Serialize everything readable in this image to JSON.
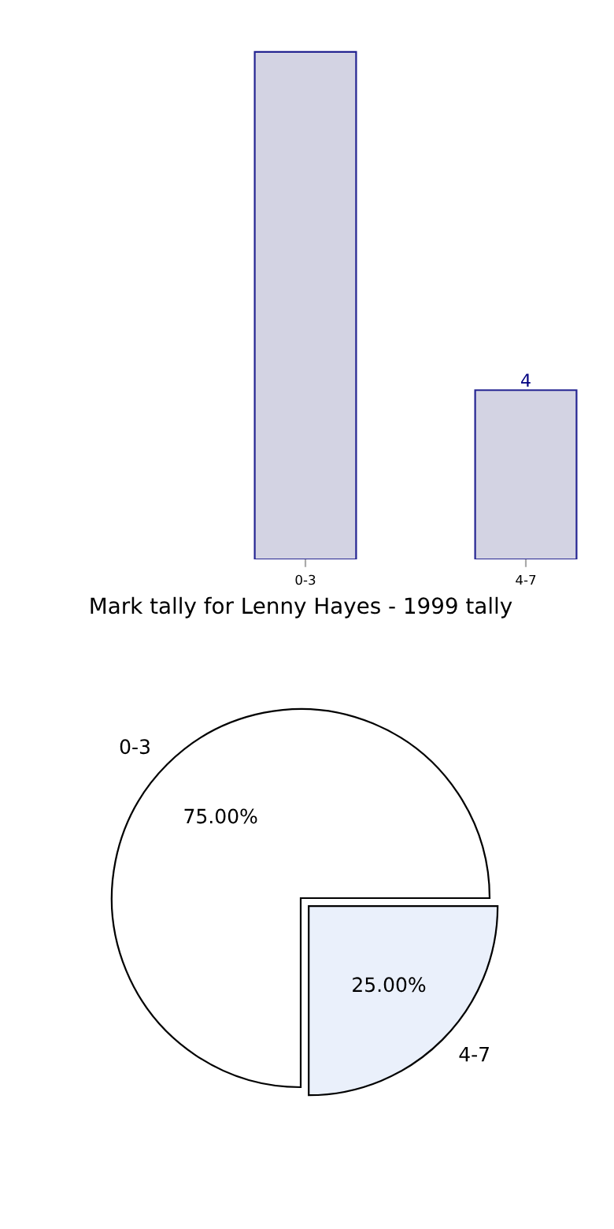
{
  "chart_data": [
    {
      "type": "pie",
      "title": "Mark tally for Lenny Hayes - 1999 tally",
      "categories": [
        "0-3",
        "4-7"
      ],
      "values": [
        75,
        25
      ],
      "colors": [
        "#ffffff",
        "#eaf0fb"
      ],
      "value_labels": [
        "75.00%",
        "25.00%"
      ]
    },
    {
      "type": "bar",
      "categories": [
        "0-3",
        "4-7"
      ],
      "values": [
        12,
        4
      ],
      "value_labels": [
        null,
        "4"
      ],
      "color": "#ccccdf"
    }
  ]
}
